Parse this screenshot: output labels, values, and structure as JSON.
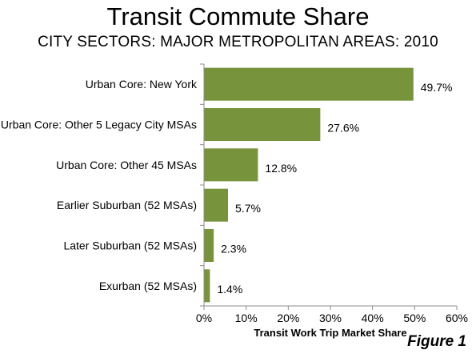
{
  "title": "Transit Commute Share",
  "subtitle": "CITY SECTORS: MAJOR METROPOLITAN AREAS: 2010",
  "figure_label": "Figure 1",
  "colors": {
    "bar": "#77933c",
    "axis": "#8c8c8c",
    "text": "#000000"
  },
  "chart_data": {
    "type": "bar",
    "orientation": "horizontal",
    "categories": [
      "Urban Core: New York",
      "Urban Core: Other 5 Legacy City MSAs",
      "Urban Core: Other 45 MSAs",
      "Earlier Suburban (52 MSAs)",
      "Later Suburban (52 MSAs)",
      "Exurban (52 MSAs)"
    ],
    "values": [
      49.7,
      27.6,
      12.8,
      5.7,
      2.3,
      1.4
    ],
    "data_labels": [
      "49.7%",
      "27.6%",
      "12.8%",
      "5.7%",
      "2.3%",
      "1.4%"
    ],
    "xlabel": "Transit Work Trip Market Share",
    "ylabel": "",
    "xlim": [
      0,
      60
    ],
    "xticks": [
      0,
      10,
      20,
      30,
      40,
      50,
      60
    ],
    "xtick_labels": [
      "0%",
      "10%",
      "20%",
      "30%",
      "40%",
      "50%",
      "60%"
    ],
    "grid": false,
    "legend": "none"
  }
}
